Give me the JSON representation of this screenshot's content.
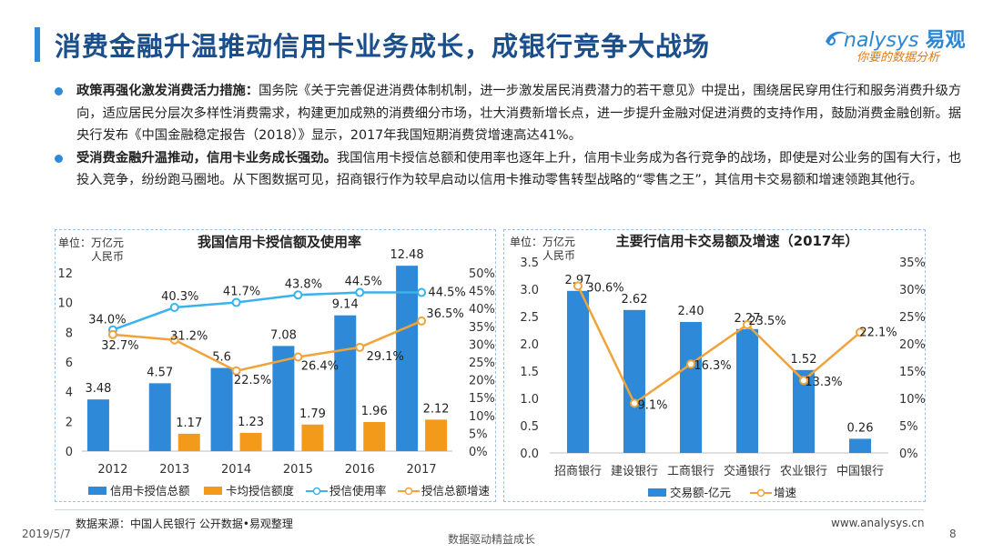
{
  "header": {
    "title": "消费金融升温推动信用卡业务成长，成银行竞争大战场"
  },
  "logo": {
    "brand_en": "nalysys",
    "brand_cn": "易观",
    "tagline": "你要的数据分析"
  },
  "bullets": [
    {
      "lead": "政策再强化激发消费活力措施：",
      "text": "国务院《关于完善促进消费体制机制，进一步激发居民消费潜力的若干意见》中提出，围绕居民穿用住行和服务消费升级方向，适应居民分层次多样性消费需求，构建更加成熟的消费细分市场，壮大消费新增长点，进一步提升金融对促进消费的支持作用，鼓励消费金融创新。据央行发布《中国金融稳定报告（2018）》显示，2017年我国短期消费贷增速高达41%。"
    },
    {
      "lead": "受消费金融升温推动，信用卡业务成长强劲。",
      "text": "我国信用卡授信总额和使用率也逐年上升，信用卡业务成为各行竞争的战场，即使是对公业务的国有大行，也投入竞争，纷纷跑马圈地。从下图数据可见，招商银行作为较早启动以信用卡推动零售转型战略的“零售之王”，其信用卡交易额和增速领跑其他行。"
    }
  ],
  "chart_data": [
    {
      "type": "bar",
      "title": "我国信用卡授信额及使用率",
      "unit_label": "单位：万亿元人民币",
      "categories": [
        "2012",
        "2013",
        "2014",
        "2015",
        "2016",
        "2017"
      ],
      "ylim": [
        0,
        12
      ],
      "y2lim": [
        0,
        50
      ],
      "yticks": [
        "0",
        "2",
        "4",
        "6",
        "8",
        "10",
        "12"
      ],
      "y2ticks": [
        "0%",
        "5%",
        "10%",
        "15%",
        "20%",
        "25%",
        "30%",
        "35%",
        "40%",
        "45%",
        "50%"
      ],
      "series": [
        {
          "name": "信用卡授信总额",
          "kind": "bar",
          "axis": "left",
          "color": "#2e8ad8",
          "values": [
            3.48,
            4.57,
            5.6,
            7.08,
            9.14,
            12.48
          ],
          "labels": [
            "3.48",
            "4.57",
            "5.6",
            "7.08",
            "9.14",
            "12.48"
          ]
        },
        {
          "name": "卡均授信额度",
          "kind": "bar",
          "axis": "left",
          "color": "#f39a1a",
          "values": [
            null,
            1.17,
            1.23,
            1.79,
            1.96,
            2.12
          ],
          "labels": [
            "",
            "1.17",
            "1.23",
            "1.79",
            "1.96",
            "2.12"
          ]
        },
        {
          "name": "授信使用率",
          "kind": "line",
          "axis": "right",
          "color": "#3ab2ec",
          "values": [
            34.0,
            40.3,
            41.7,
            43.8,
            44.5,
            44.5
          ],
          "labels": [
            "34.0%",
            "40.3%",
            "41.7%",
            "43.8%",
            "44.5%",
            "44.5%"
          ]
        },
        {
          "name": "授信总额增速",
          "kind": "line",
          "axis": "right",
          "color": "#f0a33a",
          "values": [
            32.7,
            31.2,
            22.5,
            26.4,
            29.1,
            36.5
          ],
          "labels": [
            "32.7%",
            "31.2%",
            "22.5%",
            "26.4%",
            "29.1%",
            "36.5%"
          ]
        }
      ],
      "legend": "bottom"
    },
    {
      "type": "bar",
      "title": "主要行信用卡交易额及增速（2017年）",
      "unit_label": "单位：万亿元人民币",
      "categories": [
        "招商银行",
        "建设银行",
        "工商银行",
        "交通银行",
        "农业银行",
        "中国银行"
      ],
      "ylim": [
        0,
        3.5
      ],
      "y2lim": [
        0,
        35
      ],
      "yticks": [
        "0.0",
        "0.5",
        "1.0",
        "1.5",
        "2.0",
        "2.5",
        "3.0",
        "3.5"
      ],
      "y2ticks": [
        "0%",
        "5%",
        "10%",
        "15%",
        "20%",
        "25%",
        "30%",
        "35%"
      ],
      "series": [
        {
          "name": "交易额-亿元",
          "kind": "bar",
          "axis": "left",
          "color": "#2e8ad8",
          "values": [
            2.97,
            2.62,
            2.4,
            2.27,
            1.52,
            0.26
          ],
          "labels": [
            "2.97",
            "2.62",
            "2.40",
            "2.27",
            "1.52",
            "0.26"
          ]
        },
        {
          "name": "增速",
          "kind": "line",
          "axis": "right",
          "color": "#f0a33a",
          "values": [
            30.6,
            9.1,
            16.3,
            23.5,
            13.3,
            22.1
          ],
          "labels": [
            "30.6%",
            "9.1%",
            "16.3%",
            "23.5%",
            "13.3%",
            "22.1%"
          ]
        }
      ],
      "legend": "bottom"
    }
  ],
  "footer": {
    "source": "数据来源：中国人民银行 公开数据•易观整理",
    "date": "2019/5/7",
    "slogan": "数据驱动精益成长",
    "url": "www.analysys.cn",
    "page": "8"
  },
  "colors": {
    "accent": "#2e8ad8",
    "orange": "#f39a1a",
    "title": "#1b4f8c"
  }
}
